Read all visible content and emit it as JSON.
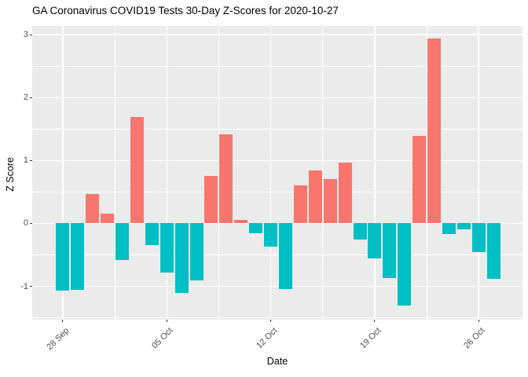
{
  "title": "GA Coronavirus COVID19 Tests 30-Day Z-Scores for 2020-10-27",
  "chart_data": {
    "type": "bar",
    "title": "GA Coronavirus COVID19 Tests 30-Day Z-Scores for 2020-10-27",
    "xlabel": "Date",
    "ylabel": "Z Score",
    "grid": true,
    "legend_position": "none",
    "panel_background": "#EBEBEB",
    "gridline_color": "#FFFFFF",
    "tick_label_color": "#4D4D4D",
    "positive_color": "#F8766D",
    "negative_color": "#00BFC4",
    "ylim": [
      -1.53,
      3.14
    ],
    "xlim_day_index": [
      -2.06,
      30.95
    ],
    "y_major_ticks": [
      -1,
      0,
      1,
      2,
      3
    ],
    "y_minor_ticks": [
      -1.5,
      -0.5,
      0.5,
      1.5,
      2.5
    ],
    "x_tick_labels": [
      "28 Sep",
      "05 Oct",
      "12 Oct",
      "19 Oct",
      "26 Oct"
    ],
    "x_tick_day_index": [
      0,
      7,
      14,
      21,
      28
    ],
    "x_minor_day_index": [
      3.5,
      10.5,
      17.5,
      24.5
    ],
    "bar_width_days": 0.9,
    "dates": [
      "2020-09-28",
      "2020-09-29",
      "2020-09-30",
      "2020-10-01",
      "2020-10-02",
      "2020-10-03",
      "2020-10-04",
      "2020-10-05",
      "2020-10-06",
      "2020-10-07",
      "2020-10-08",
      "2020-10-09",
      "2020-10-10",
      "2020-10-11",
      "2020-10-12",
      "2020-10-13",
      "2020-10-14",
      "2020-10-15",
      "2020-10-16",
      "2020-10-17",
      "2020-10-18",
      "2020-10-19",
      "2020-10-20",
      "2020-10-21",
      "2020-10-22",
      "2020-10-23",
      "2020-10-24",
      "2020-10-25",
      "2020-10-26",
      "2020-10-27"
    ],
    "values": [
      -1.07,
      -1.06,
      0.47,
      0.16,
      -0.58,
      1.69,
      -0.35,
      -0.78,
      -1.1,
      -0.91,
      0.75,
      1.42,
      0.05,
      -0.16,
      -0.37,
      -1.04,
      0.6,
      0.84,
      0.7,
      0.97,
      -0.26,
      -0.55,
      -0.87,
      -1.31,
      1.39,
      2.94,
      -0.17,
      -0.1,
      -0.46,
      -0.88
    ]
  }
}
